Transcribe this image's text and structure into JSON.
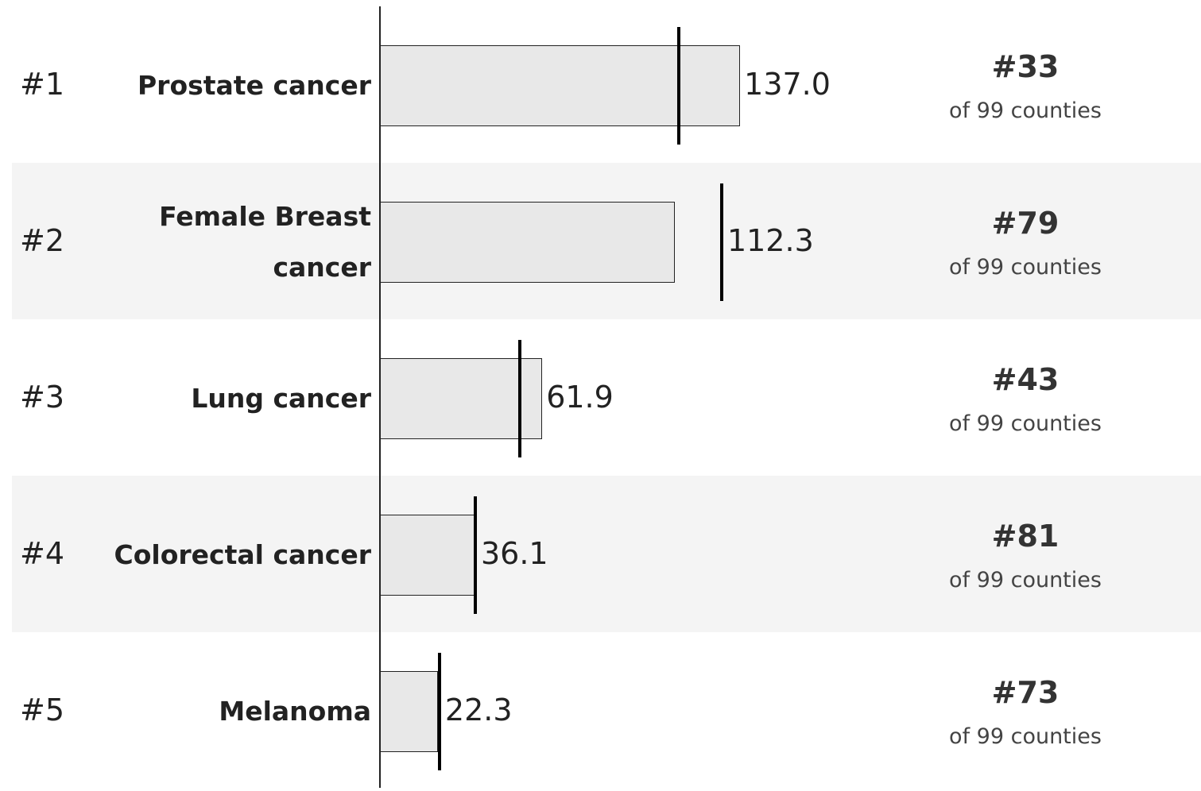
{
  "chart_data": {
    "type": "bar",
    "row_labels": [
      "#1",
      "#2",
      "#3",
      "#4",
      "#5"
    ],
    "categories": [
      "Prostate cancer",
      "Female Breast cancer",
      "Lung cancer",
      "Colorectal cancer",
      "Melanoma"
    ],
    "values": [
      137.0,
      112.3,
      61.9,
      36.1,
      22.3
    ],
    "value_labels": [
      "137.0",
      "112.3",
      "61.9",
      "36.1",
      "22.3"
    ],
    "markers": [
      113.7,
      130.0,
      53.4,
      36.5,
      22.9
    ],
    "county_ranks": [
      "#33",
      "#79",
      "#43",
      "#81",
      "#73"
    ],
    "county_note": "of 99 counties",
    "color": "#e8e8e8",
    "xlim": [
      0,
      311
    ]
  }
}
